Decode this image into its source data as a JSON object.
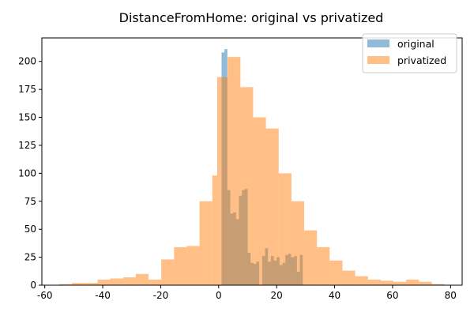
{
  "chart_data": {
    "type": "histogram",
    "title": "DistanceFromHome: original vs privatized",
    "xlabel": "",
    "ylabel": "",
    "xlim": [
      -61,
      84
    ],
    "ylim": [
      0,
      221
    ],
    "xticks": [
      -60,
      -40,
      -20,
      0,
      20,
      40,
      60,
      80
    ],
    "yticks": [
      0,
      25,
      50,
      75,
      100,
      125,
      150,
      175,
      200
    ],
    "grid": false,
    "legend": "top-right",
    "series": [
      {
        "name": "original",
        "color": "#1f77b4",
        "opacity": 0.5,
        "bins": [
          [
            1,
            2,
            208
          ],
          [
            2,
            3,
            211
          ],
          [
            3,
            4,
            85
          ],
          [
            4,
            5,
            64
          ],
          [
            5,
            6,
            65
          ],
          [
            6,
            7,
            59
          ],
          [
            7,
            8,
            80
          ],
          [
            8,
            9,
            85
          ],
          [
            9,
            10,
            86
          ],
          [
            10,
            11,
            29
          ],
          [
            11,
            12,
            20
          ],
          [
            12,
            13,
            19
          ],
          [
            13,
            14,
            21
          ],
          [
            14,
            15,
            0
          ],
          [
            15,
            16,
            26
          ],
          [
            16,
            17,
            33
          ],
          [
            17,
            18,
            21
          ],
          [
            18,
            19,
            26
          ],
          [
            19,
            20,
            22
          ],
          [
            20,
            21,
            25
          ],
          [
            21,
            22,
            18
          ],
          [
            22,
            23,
            20
          ],
          [
            23,
            24,
            27
          ],
          [
            24,
            25,
            28
          ],
          [
            25,
            26,
            25
          ],
          [
            26,
            27,
            26
          ],
          [
            27,
            28,
            12
          ],
          [
            28,
            29,
            27
          ]
        ]
      },
      {
        "name": "privatized",
        "color": "#ff7f0e",
        "opacity": 0.5,
        "bins": [
          [
            -55,
            -50.6,
            1
          ],
          [
            -50.6,
            -46.2,
            2
          ],
          [
            -46.2,
            -41.8,
            2
          ],
          [
            -41.8,
            -37.4,
            5
          ],
          [
            -37.4,
            -33,
            6
          ],
          [
            -33,
            -28.6,
            7
          ],
          [
            -28.6,
            -24.2,
            10
          ],
          [
            -24.2,
            -19.8,
            5
          ],
          [
            -19.8,
            -15.4,
            23
          ],
          [
            -15.4,
            -11,
            34
          ],
          [
            -11,
            -6.6,
            35
          ],
          [
            -6.6,
            -2.2,
            75
          ],
          [
            -2.2,
            -0.5,
            98
          ],
          [
            -0.5,
            3.1,
            186
          ],
          [
            3.1,
            7.5,
            204
          ],
          [
            7.5,
            11.9,
            177
          ],
          [
            11.9,
            16.3,
            150
          ],
          [
            16.3,
            20.7,
            140
          ],
          [
            20.7,
            25.1,
            100
          ],
          [
            25.1,
            29.5,
            75
          ],
          [
            29.5,
            33.9,
            49
          ],
          [
            33.9,
            38.3,
            34
          ],
          [
            38.3,
            42.7,
            22
          ],
          [
            42.7,
            47.1,
            13
          ],
          [
            47.1,
            51.5,
            8
          ],
          [
            51.5,
            55.9,
            5
          ],
          [
            55.9,
            60.3,
            4
          ],
          [
            60.3,
            64.7,
            3
          ],
          [
            64.7,
            69.1,
            5
          ],
          [
            69.1,
            73.5,
            3
          ],
          [
            73.5,
            77.9,
            1
          ]
        ]
      }
    ]
  }
}
